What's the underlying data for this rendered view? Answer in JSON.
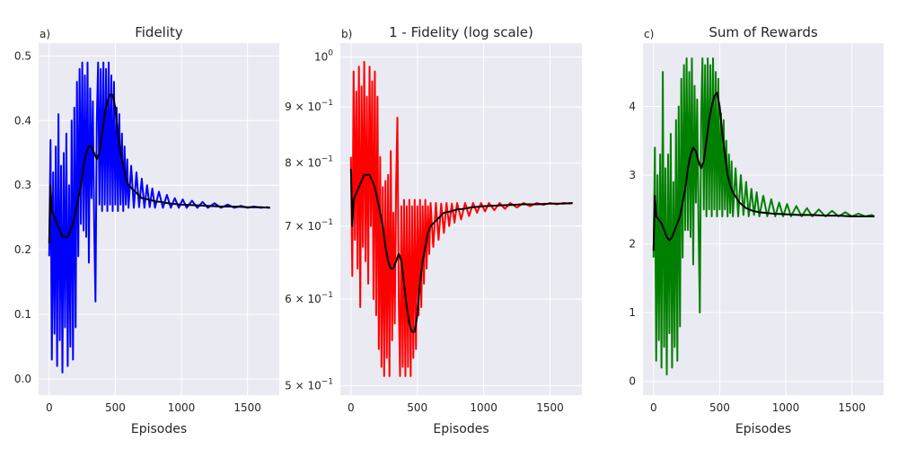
{
  "chart_data": [
    {
      "type": "line",
      "panel_label": "a)",
      "title": "Fidelity",
      "xlabel": "Episodes",
      "ylabel": "",
      "xlim": [
        -80,
        1740
      ],
      "ylim": [
        -0.025,
        0.52
      ],
      "xticks": [
        0,
        500,
        1000,
        1500
      ],
      "yticks": [
        0.0,
        0.1,
        0.2,
        0.3,
        0.4,
        0.5
      ],
      "ytick_labels": [
        "0.0",
        "0.1",
        "0.2",
        "0.3",
        "0.4",
        "0.5"
      ],
      "grid": true,
      "series": [
        {
          "role": "raw",
          "color": "#0000ff",
          "x": [
            0,
            10,
            20,
            30,
            40,
            50,
            60,
            70,
            80,
            90,
            100,
            110,
            120,
            130,
            140,
            150,
            160,
            170,
            180,
            190,
            200,
            210,
            220,
            230,
            240,
            250,
            260,
            270,
            280,
            290,
            300,
            310,
            320,
            330,
            340,
            350,
            360,
            370,
            380,
            390,
            400,
            410,
            420,
            430,
            440,
            450,
            460,
            470,
            480,
            490,
            500,
            510,
            520,
            530,
            540,
            550,
            560,
            570,
            580,
            590,
            600,
            620,
            640,
            660,
            680,
            700,
            720,
            740,
            760,
            780,
            800,
            830,
            860,
            890,
            920,
            950,
            980,
            1010,
            1040,
            1080,
            1120,
            1160,
            1200,
            1250,
            1300,
            1350,
            1400,
            1450,
            1500,
            1550,
            1600,
            1650,
            1670
          ],
          "y": [
            0.19,
            0.37,
            0.03,
            0.32,
            0.07,
            0.36,
            0.02,
            0.41,
            0.06,
            0.33,
            0.01,
            0.35,
            0.08,
            0.38,
            0.02,
            0.3,
            0.05,
            0.4,
            0.03,
            0.42,
            0.08,
            0.46,
            0.19,
            0.48,
            0.24,
            0.49,
            0.23,
            0.47,
            0.22,
            0.49,
            0.18,
            0.45,
            0.28,
            0.43,
            0.24,
            0.12,
            0.4,
            0.49,
            0.27,
            0.48,
            0.26,
            0.49,
            0.27,
            0.48,
            0.26,
            0.49,
            0.27,
            0.47,
            0.26,
            0.46,
            0.27,
            0.42,
            0.26,
            0.41,
            0.27,
            0.38,
            0.26,
            0.36,
            0.27,
            0.34,
            0.265,
            0.33,
            0.265,
            0.32,
            0.266,
            0.31,
            0.265,
            0.3,
            0.266,
            0.295,
            0.265,
            0.29,
            0.265,
            0.285,
            0.265,
            0.28,
            0.265,
            0.278,
            0.265,
            0.276,
            0.265,
            0.274,
            0.265,
            0.272,
            0.265,
            0.27,
            0.265,
            0.268,
            0.265,
            0.267,
            0.265,
            0.266,
            0.265
          ]
        },
        {
          "role": "smoothed",
          "color": "#000000",
          "x": [
            0,
            10,
            20,
            40,
            60,
            80,
            100,
            120,
            140,
            160,
            180,
            200,
            220,
            240,
            260,
            280,
            300,
            320,
            340,
            360,
            380,
            400,
            420,
            440,
            460,
            480,
            500,
            520,
            540,
            560,
            580,
            600,
            650,
            700,
            750,
            800,
            850,
            900,
            1000,
            1100,
            1200,
            1300,
            1400,
            1500,
            1600,
            1670
          ],
          "y": [
            0.21,
            0.3,
            0.26,
            0.25,
            0.24,
            0.23,
            0.22,
            0.22,
            0.22,
            0.23,
            0.24,
            0.26,
            0.28,
            0.3,
            0.33,
            0.35,
            0.36,
            0.36,
            0.35,
            0.34,
            0.35,
            0.38,
            0.41,
            0.43,
            0.44,
            0.44,
            0.42,
            0.38,
            0.35,
            0.33,
            0.31,
            0.3,
            0.29,
            0.28,
            0.278,
            0.275,
            0.274,
            0.272,
            0.27,
            0.269,
            0.268,
            0.267,
            0.267,
            0.266,
            0.266,
            0.265
          ]
        }
      ]
    },
    {
      "type": "line",
      "panel_label": "b)",
      "title": "1 - Fidelity (log scale)",
      "xlabel": "Episodes",
      "ylabel": "",
      "xlim": [
        -80,
        1740
      ],
      "ylim": [
        0.49,
        1.03
      ],
      "yscale": "log",
      "xticks": [
        0,
        500,
        1000,
        1500
      ],
      "yticks": [
        0.5,
        0.6,
        0.7,
        0.8,
        0.9,
        1.0
      ],
      "ytick_labels": [
        {
          "base": "5 × 10",
          "exp": "−1"
        },
        {
          "base": "6 × 10",
          "exp": "−1"
        },
        {
          "base": "7 × 10",
          "exp": "−1"
        },
        {
          "base": "8 × 10",
          "exp": "−1"
        },
        {
          "base": "9 × 10",
          "exp": "−1"
        },
        {
          "base": "10",
          "exp": "0"
        }
      ],
      "grid": true,
      "series": [
        {
          "role": "raw",
          "color": "#ff0000",
          "x": [
            0,
            10,
            20,
            30,
            40,
            50,
            60,
            70,
            80,
            90,
            100,
            110,
            120,
            130,
            140,
            150,
            160,
            170,
            180,
            190,
            200,
            210,
            220,
            230,
            240,
            250,
            260,
            270,
            280,
            290,
            300,
            310,
            320,
            330,
            340,
            350,
            360,
            370,
            380,
            390,
            400,
            410,
            420,
            430,
            440,
            450,
            460,
            470,
            480,
            490,
            500,
            510,
            520,
            530,
            540,
            550,
            560,
            570,
            580,
            590,
            600,
            620,
            640,
            660,
            680,
            700,
            720,
            740,
            760,
            780,
            800,
            830,
            860,
            890,
            920,
            950,
            980,
            1010,
            1040,
            1080,
            1120,
            1160,
            1200,
            1250,
            1300,
            1350,
            1400,
            1450,
            1500,
            1550,
            1600,
            1650,
            1670
          ],
          "y": [
            0.81,
            0.63,
            0.97,
            0.68,
            0.93,
            0.64,
            0.98,
            0.59,
            0.94,
            0.67,
            0.99,
            0.65,
            0.92,
            0.62,
            0.98,
            0.7,
            0.95,
            0.6,
            0.97,
            0.58,
            0.92,
            0.54,
            0.81,
            0.52,
            0.76,
            0.51,
            0.77,
            0.53,
            0.78,
            0.51,
            0.82,
            0.55,
            0.72,
            0.57,
            0.76,
            0.88,
            0.6,
            0.51,
            0.73,
            0.52,
            0.74,
            0.51,
            0.73,
            0.52,
            0.74,
            0.51,
            0.73,
            0.53,
            0.74,
            0.54,
            0.73,
            0.58,
            0.74,
            0.59,
            0.73,
            0.62,
            0.74,
            0.64,
            0.73,
            0.66,
            0.735,
            0.67,
            0.735,
            0.68,
            0.734,
            0.69,
            0.735,
            0.7,
            0.734,
            0.705,
            0.735,
            0.71,
            0.735,
            0.715,
            0.735,
            0.72,
            0.735,
            0.722,
            0.735,
            0.724,
            0.735,
            0.726,
            0.735,
            0.728,
            0.735,
            0.73,
            0.735,
            0.732,
            0.735,
            0.733,
            0.735,
            0.734,
            0.735
          ]
        },
        {
          "role": "smoothed",
          "color": "#000000",
          "x": [
            0,
            10,
            20,
            40,
            60,
            80,
            100,
            120,
            140,
            160,
            180,
            200,
            220,
            240,
            260,
            280,
            300,
            320,
            340,
            360,
            380,
            400,
            420,
            440,
            460,
            480,
            500,
            520,
            540,
            560,
            580,
            600,
            650,
            700,
            750,
            800,
            850,
            900,
            1000,
            1100,
            1200,
            1300,
            1400,
            1500,
            1600,
            1670
          ],
          "y": [
            0.79,
            0.7,
            0.74,
            0.75,
            0.76,
            0.77,
            0.78,
            0.78,
            0.78,
            0.77,
            0.76,
            0.74,
            0.72,
            0.7,
            0.67,
            0.65,
            0.64,
            0.64,
            0.65,
            0.66,
            0.65,
            0.62,
            0.59,
            0.57,
            0.56,
            0.56,
            0.58,
            0.62,
            0.65,
            0.67,
            0.69,
            0.7,
            0.71,
            0.72,
            0.722,
            0.725,
            0.726,
            0.728,
            0.73,
            0.731,
            0.732,
            0.733,
            0.733,
            0.734,
            0.734,
            0.735
          ]
        }
      ]
    },
    {
      "type": "line",
      "panel_label": "c)",
      "title": "Sum of Rewards",
      "xlabel": "Episodes",
      "ylabel": "",
      "xlim": [
        -80,
        1740
      ],
      "ylim": [
        -0.2,
        4.92
      ],
      "xticks": [
        0,
        500,
        1000,
        1500
      ],
      "yticks": [
        0,
        1,
        2,
        3,
        4
      ],
      "ytick_labels": [
        "0",
        "1",
        "2",
        "3",
        "4"
      ],
      "grid": true,
      "series": [
        {
          "role": "raw",
          "color": "#008000",
          "x": [
            0,
            10,
            20,
            30,
            40,
            50,
            60,
            70,
            80,
            90,
            100,
            110,
            120,
            130,
            140,
            150,
            160,
            170,
            180,
            190,
            200,
            210,
            220,
            230,
            240,
            250,
            260,
            270,
            280,
            290,
            300,
            310,
            320,
            330,
            340,
            350,
            360,
            370,
            380,
            390,
            400,
            410,
            420,
            430,
            440,
            450,
            460,
            470,
            480,
            490,
            500,
            510,
            520,
            530,
            540,
            550,
            560,
            570,
            580,
            590,
            600,
            620,
            640,
            660,
            680,
            700,
            720,
            740,
            760,
            780,
            800,
            830,
            860,
            890,
            920,
            950,
            980,
            1010,
            1040,
            1080,
            1120,
            1160,
            1200,
            1250,
            1300,
            1350,
            1400,
            1450,
            1500,
            1550,
            1600,
            1650,
            1670
          ],
          "y": [
            1.8,
            3.4,
            0.3,
            3.0,
            0.6,
            3.3,
            0.2,
            4.5,
            0.5,
            3.1,
            0.1,
            3.3,
            0.7,
            3.6,
            0.2,
            2.9,
            0.5,
            3.8,
            0.3,
            4.0,
            0.8,
            4.4,
            1.8,
            4.6,
            2.2,
            4.7,
            2.2,
            4.5,
            2.1,
            4.7,
            1.7,
            4.3,
            2.6,
            4.1,
            2.3,
            1.0,
            3.8,
            4.7,
            2.5,
            4.6,
            2.4,
            4.7,
            2.5,
            4.6,
            2.4,
            4.7,
            2.5,
            4.5,
            2.4,
            4.4,
            2.5,
            3.9,
            2.4,
            3.8,
            2.5,
            3.5,
            2.4,
            3.3,
            2.45,
            3.2,
            2.4,
            3.1,
            2.4,
            3.0,
            2.42,
            2.9,
            2.4,
            2.8,
            2.42,
            2.75,
            2.4,
            2.7,
            2.4,
            2.65,
            2.4,
            2.6,
            2.4,
            2.58,
            2.4,
            2.55,
            2.4,
            2.52,
            2.4,
            2.5,
            2.4,
            2.48,
            2.4,
            2.46,
            2.4,
            2.44,
            2.4,
            2.42,
            2.4
          ]
        },
        {
          "role": "smoothed",
          "color": "#000000",
          "x": [
            0,
            10,
            20,
            40,
            60,
            80,
            100,
            120,
            140,
            160,
            180,
            200,
            220,
            240,
            260,
            280,
            300,
            320,
            340,
            360,
            380,
            400,
            420,
            440,
            460,
            480,
            500,
            520,
            540,
            560,
            580,
            600,
            650,
            700,
            750,
            800,
            850,
            900,
            1000,
            1100,
            1200,
            1300,
            1400,
            1500,
            1600,
            1670
          ],
          "y": [
            1.9,
            2.7,
            2.4,
            2.35,
            2.3,
            2.2,
            2.1,
            2.05,
            2.1,
            2.2,
            2.3,
            2.4,
            2.6,
            2.8,
            3.1,
            3.3,
            3.4,
            3.35,
            3.2,
            3.1,
            3.2,
            3.5,
            3.8,
            4.0,
            4.15,
            4.2,
            4.0,
            3.6,
            3.3,
            3.0,
            2.85,
            2.75,
            2.6,
            2.52,
            2.48,
            2.46,
            2.45,
            2.44,
            2.43,
            2.42,
            2.42,
            2.41,
            2.41,
            2.4,
            2.4,
            2.4
          ]
        }
      ]
    }
  ]
}
